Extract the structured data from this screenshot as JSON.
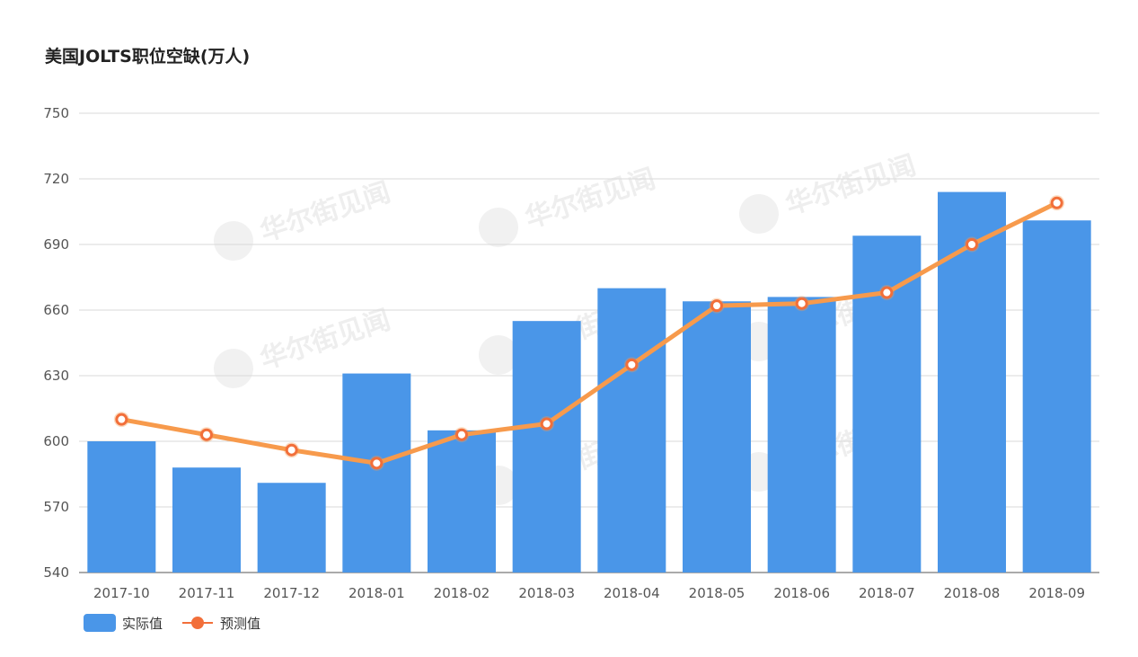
{
  "chart_data": {
    "type": "bar",
    "title": "美国JOLTS职位空缺(万人)",
    "categories": [
      "2017-10",
      "2017-11",
      "2017-12",
      "2018-01",
      "2018-02",
      "2018-03",
      "2018-04",
      "2018-05",
      "2018-06",
      "2018-07",
      "2018-08",
      "2018-09"
    ],
    "series": [
      {
        "name": "实际值",
        "type": "bar",
        "color": "#4a96e8",
        "values": [
          600,
          588,
          581,
          631,
          605,
          655,
          670,
          664,
          666,
          694,
          714,
          701
        ]
      },
      {
        "name": "预测值",
        "type": "line",
        "color": "#f79a4c",
        "marker_color": "#f26f3a",
        "values": [
          610,
          603,
          596,
          590,
          603,
          608,
          635,
          662,
          663,
          668,
          690,
          709
        ]
      }
    ],
    "ylim": [
      540,
      750
    ],
    "yticks": [
      540,
      570,
      600,
      630,
      660,
      690,
      720,
      750
    ],
    "grid": true,
    "legend_position": "bottom-left",
    "watermark_text": "华尔街见闻"
  }
}
